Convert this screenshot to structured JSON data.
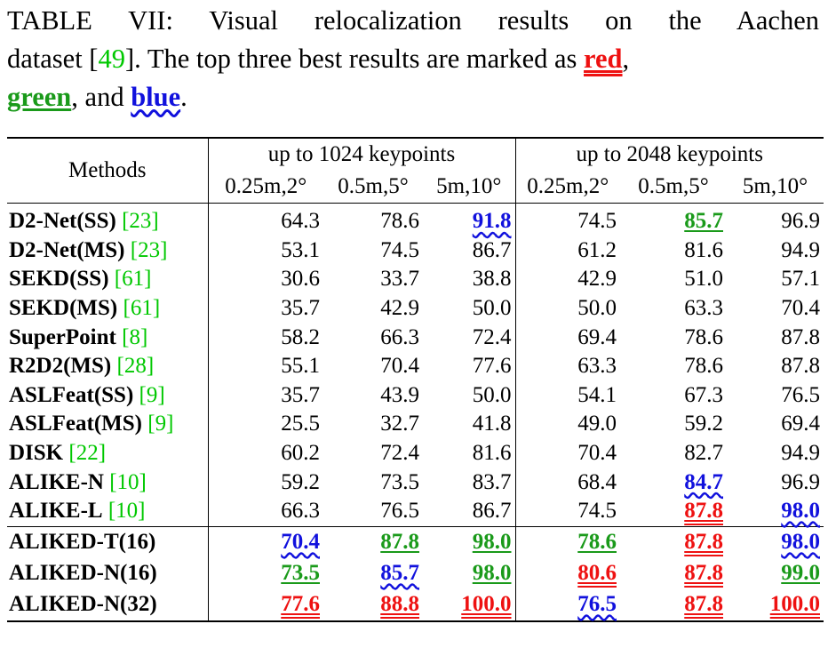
{
  "caption": {
    "line1": "TABLE VII: Visual relocalization results on the Aachen",
    "line2_pre": "dataset [",
    "ref": "49",
    "line2_post": "]. The top three best results are marked as ",
    "red": "red",
    "comma1": ",",
    "green": "green",
    "and": ", and ",
    "blue": "blue",
    "end": "."
  },
  "header": {
    "methods": "Methods",
    "groups": [
      "up to 1024 keypoints",
      "up to 2048 keypoints"
    ],
    "metrics": [
      "0.25m,2°",
      "0.5m,5°",
      "5m,10°",
      "0.25m,2°",
      "0.5m,5°",
      "5m,10°"
    ]
  },
  "colors": {
    "red": "#ee1111",
    "green": "#1a9a1a",
    "blue": "#1111dd",
    "ref": "#00c800"
  },
  "rows_main": [
    {
      "name": "D2-Net(SS)",
      "ref": "23",
      "v": [
        "64.3",
        "78.6",
        "91.8",
        "74.5",
        "85.7",
        "96.9"
      ],
      "m": [
        "",
        "",
        "blue",
        "",
        "green",
        ""
      ]
    },
    {
      "name": "D2-Net(MS)",
      "ref": "23",
      "v": [
        "53.1",
        "74.5",
        "86.7",
        "61.2",
        "81.6",
        "94.9"
      ],
      "m": [
        "",
        "",
        "",
        "",
        "",
        ""
      ]
    },
    {
      "name": "SEKD(SS)",
      "ref": "61",
      "v": [
        "30.6",
        "33.7",
        "38.8",
        "42.9",
        "51.0",
        "57.1"
      ],
      "m": [
        "",
        "",
        "",
        "",
        "",
        ""
      ]
    },
    {
      "name": "SEKD(MS)",
      "ref": "61",
      "v": [
        "35.7",
        "42.9",
        "50.0",
        "50.0",
        "63.3",
        "70.4"
      ],
      "m": [
        "",
        "",
        "",
        "",
        "",
        ""
      ]
    },
    {
      "name": "SuperPoint",
      "ref": "8",
      "v": [
        "58.2",
        "66.3",
        "72.4",
        "69.4",
        "78.6",
        "87.8"
      ],
      "m": [
        "",
        "",
        "",
        "",
        "",
        ""
      ]
    },
    {
      "name": "R2D2(MS)",
      "ref": "28",
      "v": [
        "55.1",
        "70.4",
        "77.6",
        "63.3",
        "78.6",
        "87.8"
      ],
      "m": [
        "",
        "",
        "",
        "",
        "",
        ""
      ]
    },
    {
      "name": "ASLFeat(SS)",
      "ref": "9",
      "v": [
        "35.7",
        "43.9",
        "50.0",
        "54.1",
        "67.3",
        "76.5"
      ],
      "m": [
        "",
        "",
        "",
        "",
        "",
        ""
      ]
    },
    {
      "name": "ASLFeat(MS)",
      "ref": "9",
      "v": [
        "25.5",
        "32.7",
        "41.8",
        "49.0",
        "59.2",
        "69.4"
      ],
      "m": [
        "",
        "",
        "",
        "",
        "",
        ""
      ]
    },
    {
      "name": "DISK",
      "ref": "22",
      "v": [
        "60.2",
        "72.4",
        "81.6",
        "70.4",
        "82.7",
        "94.9"
      ],
      "m": [
        "",
        "",
        "",
        "",
        "",
        ""
      ]
    },
    {
      "name": "ALIKE-N",
      "ref": "10",
      "v": [
        "59.2",
        "73.5",
        "83.7",
        "68.4",
        "84.7",
        "96.9"
      ],
      "m": [
        "",
        "",
        "",
        "",
        "blue",
        ""
      ]
    },
    {
      "name": "ALIKE-L",
      "ref": "10",
      "v": [
        "66.3",
        "76.5",
        "86.7",
        "74.5",
        "87.8",
        "98.0"
      ],
      "m": [
        "",
        "",
        "",
        "",
        "red",
        "blue"
      ]
    }
  ],
  "rows_ours": [
    {
      "name": "ALIKED-T(16)",
      "v": [
        "70.4",
        "87.8",
        "98.0",
        "78.6",
        "87.8",
        "98.0"
      ],
      "m": [
        "blue",
        "green",
        "green",
        "green",
        "red",
        "blue"
      ]
    },
    {
      "name": "ALIKED-N(16)",
      "v": [
        "73.5",
        "85.7",
        "98.0",
        "80.6",
        "87.8",
        "99.0"
      ],
      "m": [
        "green",
        "blue",
        "green",
        "red",
        "red",
        "green"
      ]
    },
    {
      "name": "ALIKED-N(32)",
      "v": [
        "77.6",
        "88.8",
        "100.0",
        "76.5",
        "87.8",
        "100.0"
      ],
      "m": [
        "red",
        "red",
        "red",
        "blue",
        "red",
        "red"
      ]
    }
  ]
}
